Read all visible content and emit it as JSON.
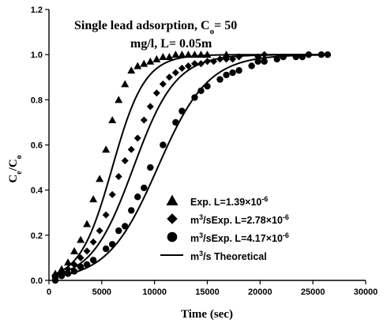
{
  "chart_data": {
    "type": "scatter",
    "title_line1": "Single lead adsorption, C",
    "title_line1_sub": "o",
    "title_line1_tail": "= 50",
    "title_line2": "mg/l, L= 0.05m",
    "xlabel": "Time (sec)",
    "ylabel_main": "C",
    "ylabel_sub1": "e",
    "ylabel_mid": "/C",
    "ylabel_sub2": "o",
    "xlim": [
      0,
      30000
    ],
    "ylim": [
      0,
      1.2
    ],
    "xticks": [
      "0",
      "5000",
      "10000",
      "15000",
      "20000",
      "25000",
      "30000"
    ],
    "yticks": [
      "0.0",
      "0.2",
      "0.4",
      "0.6",
      "0.8",
      "1.0",
      "1.2"
    ],
    "legend_position": "bottom-right",
    "legend": [
      {
        "marker": "triangle",
        "prefix": "Exp. L=",
        "text": "1.39×10",
        "sup": "-6"
      },
      {
        "marker": "diamond",
        "prefix": "m",
        "prefix_sup": "3",
        "text": "/sExp. L=2.78×10",
        "sup": "-6"
      },
      {
        "marker": "circle",
        "prefix": "m",
        "prefix_sup": "3",
        "text": "/sExp. L=4.17×10",
        "sup": "-6"
      },
      {
        "marker": "line",
        "prefix": "m",
        "prefix_sup": "3",
        "text": "/s Theoretical",
        "sup": ""
      }
    ],
    "series": [
      {
        "marker": "triangle",
        "x": [
          600,
          1200,
          1800,
          2400,
          3000,
          3600,
          4200,
          4800,
          5400,
          6000,
          6600,
          7200,
          7800,
          8400,
          9000,
          9600,
          10200,
          10800,
          11400,
          12000,
          12600,
          13200,
          13800,
          14400,
          15000,
          16800
        ],
        "y": [
          0.03,
          0.05,
          0.08,
          0.13,
          0.18,
          0.25,
          0.36,
          0.45,
          0.58,
          0.71,
          0.8,
          0.87,
          0.93,
          0.95,
          0.96,
          0.97,
          0.98,
          0.99,
          0.99,
          1.0,
          1.0,
          1.0,
          1.0,
          1.0,
          1.0,
          1.0
        ]
      },
      {
        "marker": "diamond",
        "x": [
          600,
          1200,
          1800,
          2400,
          3000,
          3600,
          4200,
          4800,
          5400,
          6000,
          6600,
          7200,
          7800,
          8400,
          9000,
          9600,
          10200,
          10800,
          11400,
          12000,
          12600,
          13200,
          13800,
          14400,
          15000,
          15600,
          16200,
          16800,
          17400,
          18000,
          19800,
          20400
        ],
        "y": [
          0.01,
          0.03,
          0.05,
          0.07,
          0.1,
          0.13,
          0.17,
          0.22,
          0.29,
          0.38,
          0.46,
          0.53,
          0.58,
          0.63,
          0.71,
          0.77,
          0.83,
          0.87,
          0.9,
          0.92,
          0.94,
          0.95,
          0.96,
          0.96,
          0.97,
          0.97,
          0.98,
          0.98,
          0.98,
          0.99,
          0.99,
          1.0
        ]
      },
      {
        "marker": "circle",
        "x": [
          600,
          1200,
          1800,
          2400,
          3000,
          3600,
          4200,
          5400,
          6000,
          6600,
          7200,
          7800,
          8400,
          9000,
          9600,
          10800,
          12000,
          12600,
          13800,
          14400,
          15000,
          16200,
          16800,
          17400,
          18000,
          19200,
          19800,
          20400,
          21600,
          22200,
          23400,
          24000,
          24600,
          25800,
          26400
        ],
        "y": [
          0.0,
          0.02,
          0.03,
          0.04,
          0.06,
          0.07,
          0.09,
          0.14,
          0.16,
          0.22,
          0.24,
          0.31,
          0.37,
          0.41,
          0.5,
          0.6,
          0.7,
          0.75,
          0.81,
          0.84,
          0.86,
          0.89,
          0.91,
          0.92,
          0.93,
          0.95,
          0.97,
          0.97,
          0.98,
          0.99,
          0.99,
          0.99,
          1.0,
          1.0,
          1.0
        ]
      }
    ],
    "theoretical": [
      {
        "name": "L=1.39×10^-6",
        "t50": 6000,
        "k": 0.00065
      },
      {
        "name": "L=2.78×10^-6",
        "t50": 8000,
        "k": 0.0005
      },
      {
        "name": "L=4.17×10^-6",
        "t50": 10300,
        "k": 0.00042
      }
    ]
  }
}
